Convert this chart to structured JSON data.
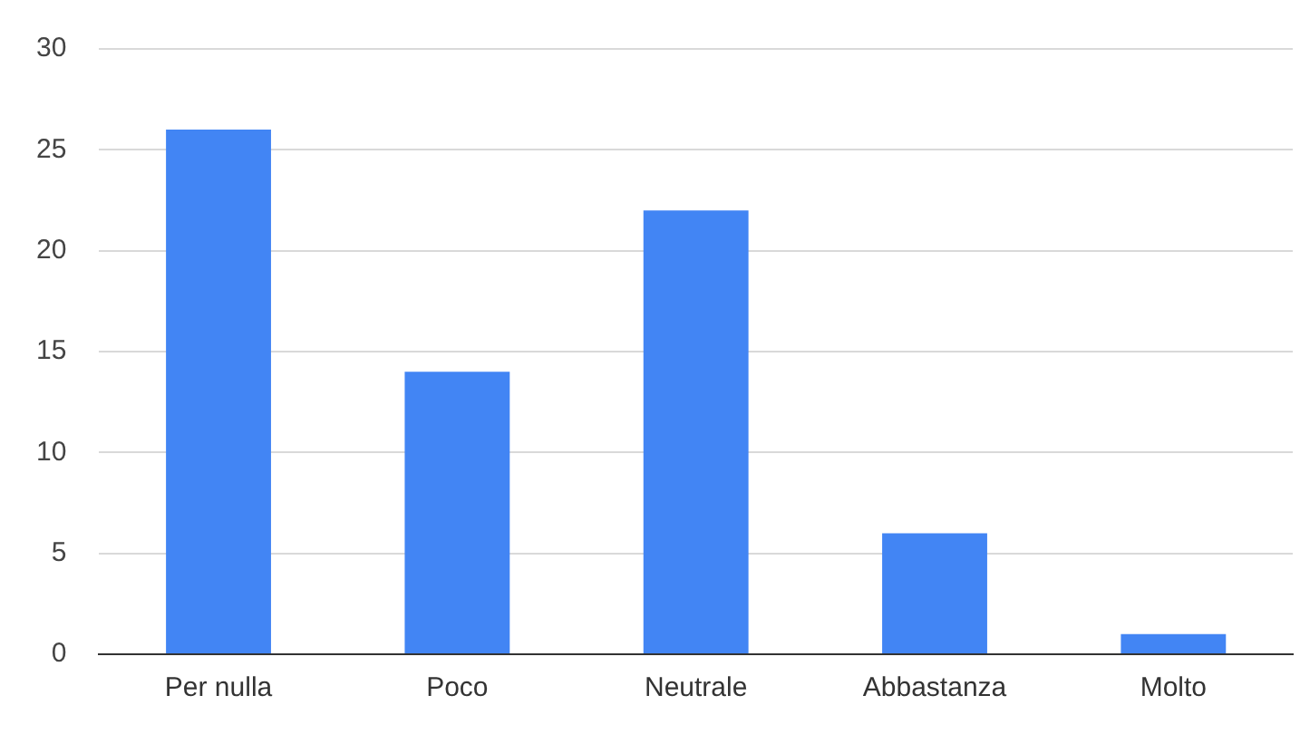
{
  "chart_data": {
    "type": "bar",
    "categories": [
      "Per nulla",
      "Poco",
      "Neutrale",
      "Abbastanza",
      "Molto"
    ],
    "values": [
      26,
      14,
      22,
      6,
      1
    ],
    "color": "#4285f4",
    "ylim": [
      0,
      30
    ],
    "yticks": [
      0,
      5,
      10,
      15,
      20,
      25,
      30
    ],
    "grid": "y",
    "legend": false
  }
}
